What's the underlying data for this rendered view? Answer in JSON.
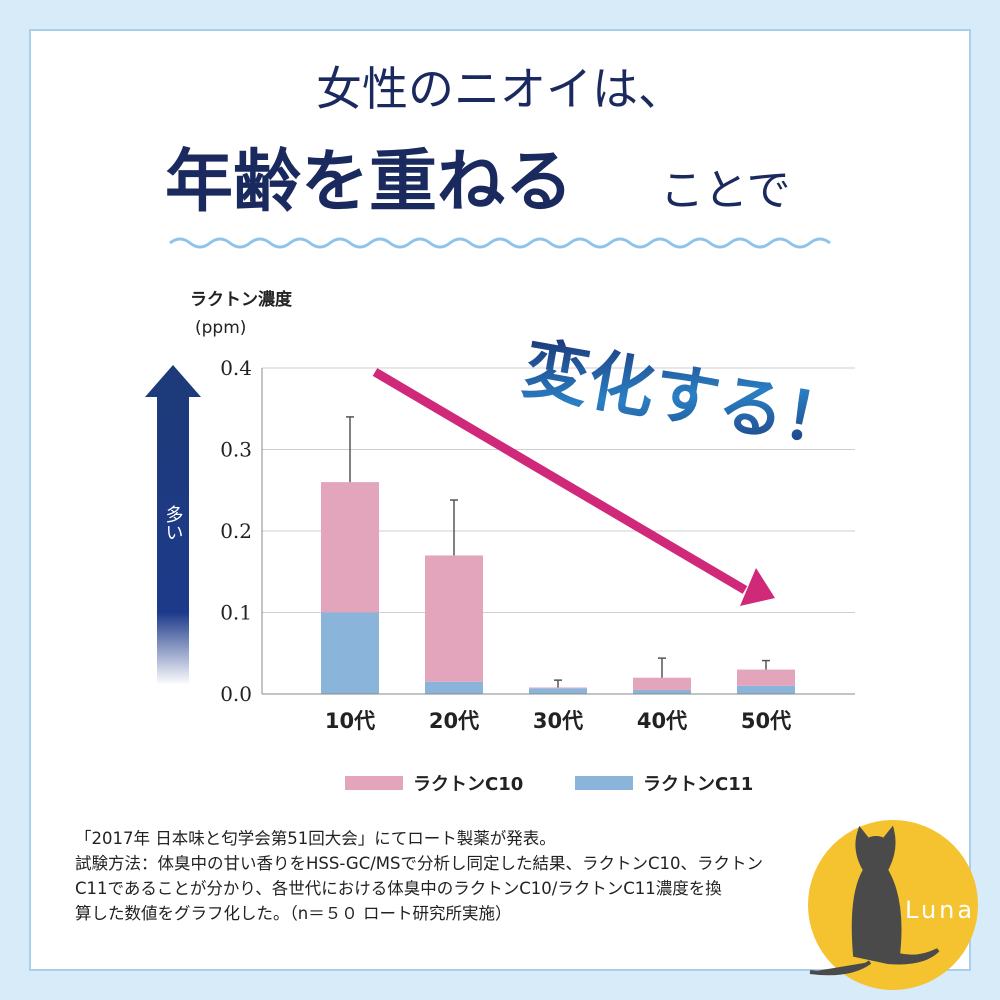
{
  "headline": {
    "line1": "女性のニオイは、",
    "line2_big": "年齢を重ねる",
    "line2_small": "ことで"
  },
  "annotation": "変化する！",
  "axis_arrow_label": "多い",
  "chart_data": {
    "type": "bar",
    "stacked": true,
    "y_label": "ラクトン濃度",
    "y_unit": "(ppm)",
    "categories": [
      "10代",
      "20代",
      "30代",
      "40代",
      "50代"
    ],
    "series": [
      {
        "name": "ラクトンC10",
        "color": "#e3a5bb",
        "values": [
          0.16,
          0.155,
          0.001,
          0.015,
          0.02
        ]
      },
      {
        "name": "ラクトンC11",
        "color": "#8ab4da",
        "values": [
          0.1,
          0.015,
          0.007,
          0.005,
          0.01
        ]
      }
    ],
    "errors": [
      0.08,
      0.068,
      0.009,
      0.024,
      0.011
    ],
    "ylim": [
      0,
      0.4
    ],
    "yticks": [
      {
        "value": 0,
        "label": "0.0"
      },
      0.1,
      0.2,
      0.3,
      0.4
    ],
    "grid": true
  },
  "footnote": [
    "「2017年 日本味と匂学会第51回大会」にてロート製薬が発表。",
    "試験方法：体臭中の甘い香りをHSS-GC/MSで分析し同定した結果、ラクトンC10、ラクトン",
    "C11であることが分かり、各世代における体臭中のラクトンC10/ラクトンC11濃度を換",
    "算した数値をグラフ化した。（n＝５０ ロート研究所実施）"
  ],
  "logo": "Luna"
}
